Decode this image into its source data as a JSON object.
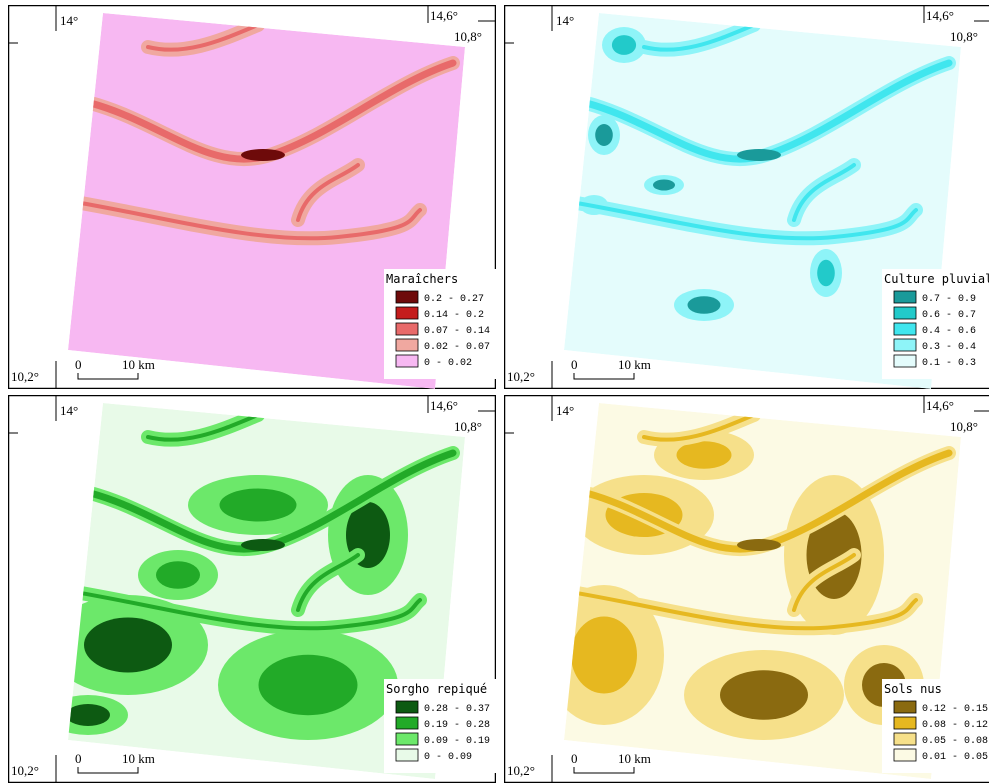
{
  "panels": [
    {
      "legend_title": "Maraîchers",
      "classes": [
        {
          "label": "0.2 - 0.27",
          "color": "#6e0a0a"
        },
        {
          "label": "0.14 - 0.2",
          "color": "#c41c1c"
        },
        {
          "label": "0.07 - 0.14",
          "color": "#e86a6a"
        },
        {
          "label": "0.02 - 0.07",
          "color": "#f0a8a0"
        },
        {
          "label": "0 - 0.02",
          "color": "#f7b8f2"
        }
      ],
      "labels": {
        "lon_left": "14°",
        "lon_right": "14,6°",
        "lat_top": "10,8°",
        "lat_bottom": "10,2°",
        "scale_zero": "0",
        "scale_length": "10 km"
      }
    },
    {
      "legend_title": "Culture pluviale",
      "classes": [
        {
          "label": "0.7 - 0.9",
          "color": "#1a9a9a"
        },
        {
          "label": "0.6 - 0.7",
          "color": "#22caca"
        },
        {
          "label": "0.4 - 0.6",
          "color": "#40e6ee"
        },
        {
          "label": "0.3 - 0.4",
          "color": "#8ef4f8"
        },
        {
          "label": "0.1 - 0.3",
          "color": "#e4fcfc"
        }
      ],
      "labels": {
        "lon_left": "14°",
        "lon_right": "14,6°",
        "lat_top": "10,8°",
        "lat_bottom": "10,2°",
        "scale_zero": "0",
        "scale_length": "10 km"
      }
    },
    {
      "legend_title": "Sorgho repiqué",
      "classes": [
        {
          "label": "0.28 - 0.37",
          "color": "#0d5a12"
        },
        {
          "label": "0.19 - 0.28",
          "color": "#22aa28"
        },
        {
          "label": "0.09 - 0.19",
          "color": "#6ce86a"
        },
        {
          "label": "0 - 0.09",
          "color": "#e8fae8"
        }
      ],
      "labels": {
        "lon_left": "14°",
        "lon_right": "14,6°",
        "lat_top": "10,8°",
        "lat_bottom": "10,2°",
        "scale_zero": "0",
        "scale_length": "10 km"
      }
    },
    {
      "legend_title": "Sols nus",
      "classes": [
        {
          "label": "0.12 - 0.15",
          "color": "#8a6a10"
        },
        {
          "label": "0.08 - 0.12",
          "color": "#e6b820"
        },
        {
          "label": "0.05 - 0.08",
          "color": "#f6e08a"
        },
        {
          "label": "0.01 - 0.05",
          "color": "#fcfae4"
        }
      ],
      "labels": {
        "lon_left": "14°",
        "lon_right": "14,6°",
        "lat_top": "10,8°",
        "lat_bottom": "10,2°",
        "scale_zero": "0",
        "scale_length": "10 km"
      }
    }
  ]
}
